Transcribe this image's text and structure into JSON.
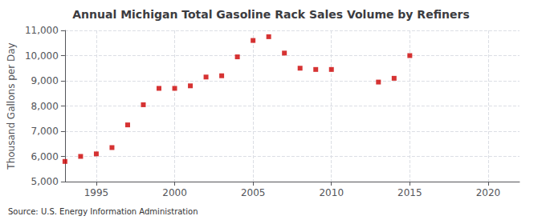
{
  "chart_data": {
    "type": "scatter",
    "title": "Annual Michigan Total Gasoline Rack Sales Volume by Refiners",
    "ylabel": "Thousand Gallons per Day",
    "annotation": "Source: U.S. Energy Information Administration",
    "x": [
      1993,
      1994,
      1995,
      1996,
      1997,
      1998,
      1999,
      2000,
      2001,
      2002,
      2003,
      2004,
      2005,
      2006,
      2007,
      2008,
      2009,
      2010,
      2013,
      2014,
      2015
    ],
    "values": [
      5800,
      6000,
      6100,
      6350,
      7250,
      8050,
      8700,
      8700,
      8800,
      9150,
      9200,
      9950,
      10600,
      10750,
      10100,
      9500,
      9450,
      9450,
      8950,
      9100,
      10000
    ],
    "color": "#cc0000",
    "marker": "square",
    "xlim": [
      1993,
      2022
    ],
    "xticks": [
      1995,
      2000,
      2005,
      2010,
      2015,
      2020
    ],
    "ylim": [
      5000,
      11000
    ],
    "yticks": [
      {
        "value": 5000,
        "label": "5,000"
      },
      {
        "value": 6000,
        "label": "6,000"
      },
      {
        "value": 7000,
        "label": "7,000"
      },
      {
        "value": 8000,
        "label": "8,000"
      },
      {
        "value": 9000,
        "label": "9,000"
      },
      {
        "value": 10000,
        "label": "10,000"
      },
      {
        "value": 11000,
        "label": "11,000"
      }
    ],
    "grid": true
  }
}
